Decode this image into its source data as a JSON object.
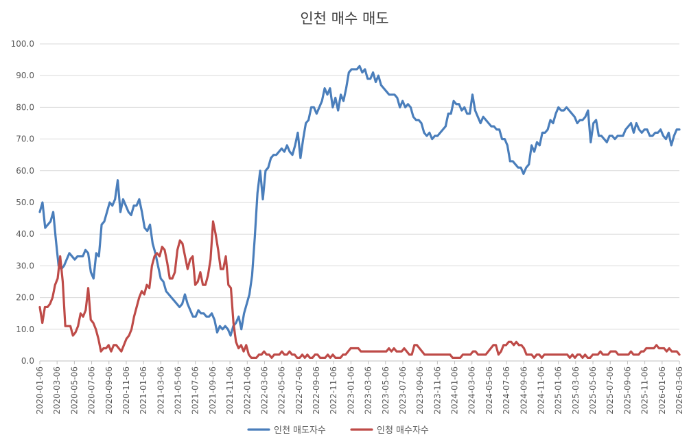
{
  "chart_data": {
    "type": "line",
    "title": "인천 매수 매도",
    "xlabel": "",
    "ylabel": "",
    "ylim": [
      0,
      100
    ],
    "y_ticks": [
      "0.0",
      "10.0",
      "20.0",
      "30.0",
      "40.0",
      "50.0",
      "60.0",
      "70.0",
      "80.0",
      "90.0",
      "100.0"
    ],
    "x_ticks": [
      "2020-01-06",
      "2020-03-06",
      "2020-05-06",
      "2020-07-06",
      "2020-09-06",
      "2020-11-06",
      "2021-01-06",
      "2021-03-06",
      "2021-05-06",
      "2021-07-06",
      "2021-09-06",
      "2021-11-06",
      "2022-01-06",
      "2022-03-06",
      "2022-05-06",
      "2022-07-06",
      "2022-09-06",
      "2022-11-06",
      "2023-01-06",
      "2023-03-06",
      "2023-05-06",
      "2023-07-06",
      "2023-09-06",
      "2023-11-06",
      "2024-01-06",
      "2024-03-06",
      "2024-05-06",
      "2024-07-06",
      "2024-09-06",
      "2024-11-06",
      "2025-01-06",
      "2025-03-06",
      "2025-05-06",
      "2025-07-06",
      "2025-09-06",
      "2025-11-06",
      "2026-01-06",
      "2026-03-06"
    ],
    "grid": true,
    "legend_position": "bottom",
    "series": [
      {
        "name": "인천 매도자수",
        "color": "#4a7ebb",
        "values": [
          47,
          50,
          42,
          43,
          44,
          47,
          38,
          30,
          29,
          30,
          32,
          34,
          33,
          32,
          33,
          33,
          33,
          35,
          34,
          28,
          26,
          34,
          33,
          43,
          44,
          47,
          50,
          49,
          51,
          57,
          47,
          51,
          49,
          47,
          46,
          49,
          49,
          51,
          47,
          42,
          41,
          43,
          37,
          34,
          30,
          26,
          25,
          22,
          21,
          20,
          19,
          18,
          17,
          18,
          21,
          18,
          16,
          14,
          14,
          16,
          15,
          15,
          14,
          14,
          15,
          13,
          9,
          11,
          10,
          11,
          10,
          8,
          11,
          12,
          14,
          10,
          15,
          18,
          21,
          27,
          39,
          53,
          60,
          51,
          60,
          61,
          64,
          65,
          65,
          66,
          67,
          66,
          68,
          66,
          65,
          68,
          72,
          64,
          70,
          75,
          76,
          80,
          80,
          78,
          80,
          82,
          86,
          84,
          86,
          80,
          83,
          79,
          84,
          82,
          86,
          91,
          92,
          92,
          92,
          93,
          91,
          92,
          89,
          89,
          91,
          88,
          90,
          87,
          86,
          85,
          84,
          84,
          84,
          83,
          80,
          82,
          80,
          81,
          80,
          77,
          76,
          76,
          75,
          72,
          71,
          72,
          70,
          71,
          71,
          72,
          73,
          74,
          78,
          78,
          82,
          81,
          81,
          79,
          80,
          78,
          78,
          84,
          79,
          77,
          75,
          77,
          76,
          75,
          74,
          74,
          73,
          73,
          70,
          70,
          68,
          63,
          63,
          62,
          61,
          61,
          59,
          61,
          62,
          68,
          66,
          69,
          68,
          72,
          72,
          73,
          76,
          75,
          78,
          80,
          79,
          79,
          80,
          79,
          78,
          77,
          75,
          76,
          76,
          77,
          79,
          69,
          75,
          76,
          71,
          71,
          70,
          69,
          71,
          71,
          70,
          71,
          71,
          71,
          73,
          74,
          75,
          72,
          75,
          73,
          72,
          73,
          73,
          71,
          71,
          72,
          72,
          73,
          71,
          70,
          72,
          68,
          71,
          73,
          73
        ]
      },
      {
        "name": "인청 매수자수",
        "color": "#be4b48",
        "values": [
          17,
          12,
          17,
          17,
          18,
          20,
          24,
          26,
          33,
          25,
          11,
          11,
          11,
          8,
          9,
          11,
          15,
          14,
          16,
          23,
          13,
          12,
          10,
          7,
          3,
          4,
          4,
          5,
          3,
          5,
          5,
          4,
          3,
          5,
          7,
          8,
          10,
          14,
          17,
          20,
          22,
          21,
          24,
          23,
          30,
          33,
          34,
          33,
          36,
          35,
          31,
          26,
          26,
          28,
          35,
          38,
          37,
          33,
          29,
          32,
          33,
          24,
          25,
          28,
          24,
          24,
          27,
          32,
          44,
          40,
          35,
          29,
          29,
          33,
          24,
          23,
          12,
          6,
          4,
          5,
          3,
          5,
          2,
          1,
          1,
          1,
          2,
          2,
          3,
          2,
          2,
          1,
          2,
          2,
          2,
          3,
          2,
          2,
          3,
          2,
          2,
          1,
          1,
          2,
          1,
          2,
          1,
          1,
          2,
          2,
          1,
          1,
          1,
          2,
          1,
          2,
          1,
          1,
          1,
          2,
          2,
          3,
          4,
          4,
          4,
          4,
          3,
          3,
          3,
          3,
          3,
          3,
          3,
          3,
          3,
          3,
          3,
          4,
          3,
          4,
          3,
          3,
          3,
          4,
          3,
          2,
          2,
          5,
          5,
          4,
          3,
          2,
          2,
          2,
          2,
          2,
          2,
          2,
          2,
          2,
          2,
          2,
          1,
          1,
          1,
          1,
          2,
          2,
          2,
          2,
          3,
          3,
          2,
          2,
          2,
          2,
          3,
          4,
          5,
          5,
          2,
          3,
          5,
          5,
          6,
          6,
          5,
          6,
          5,
          5,
          4,
          2,
          2,
          2,
          1,
          2,
          2,
          1,
          2,
          2,
          2,
          2,
          2,
          2,
          2,
          2,
          2,
          2,
          1,
          2,
          1,
          2,
          2,
          1,
          2,
          1,
          1,
          2,
          2,
          2,
          3,
          2,
          2,
          2,
          3,
          3,
          3,
          2,
          2,
          2,
          2,
          2,
          3,
          2,
          2,
          2,
          3,
          3,
          4,
          4,
          4,
          4,
          5,
          4,
          4,
          4,
          3,
          4,
          3,
          3,
          3,
          2
        ]
      }
    ]
  }
}
